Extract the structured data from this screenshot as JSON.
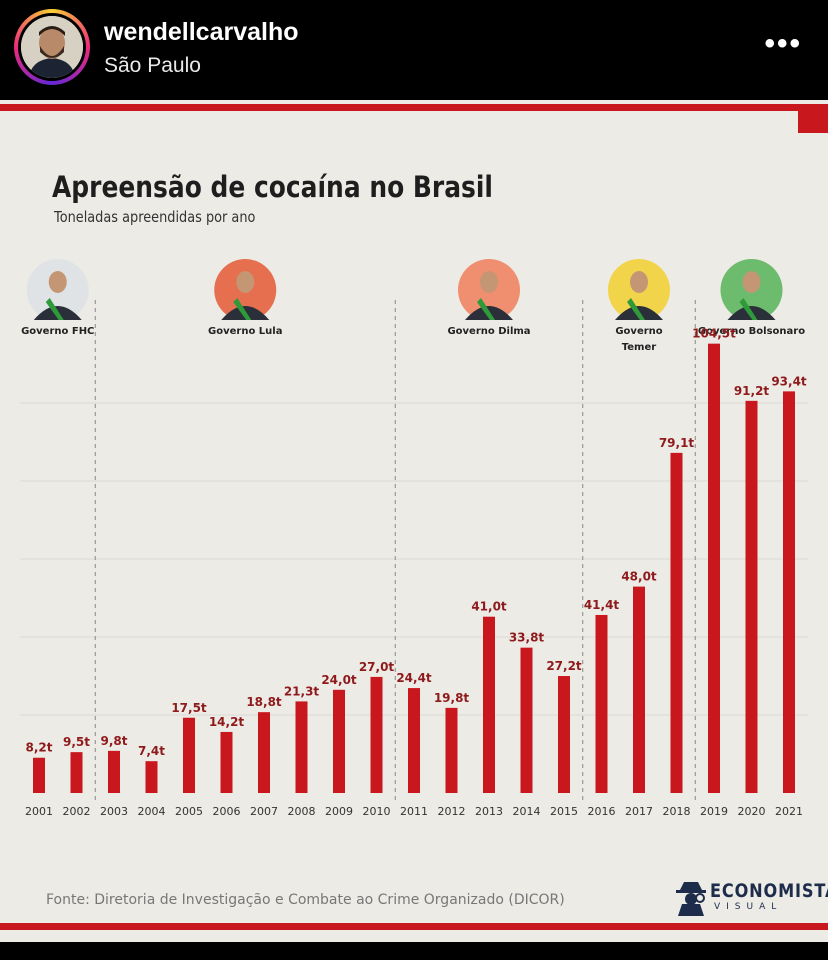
{
  "post": {
    "username": "wendellcarvalho",
    "location": "São Paulo",
    "more_icon": "more-dots-icon"
  },
  "colors": {
    "bar": "#c8181e",
    "value_label": "#8f1a1c",
    "background": "#ecebe6",
    "accent": "#c8181e"
  },
  "chart_data": {
    "type": "bar",
    "title": "Apreensão de cocaína no Brasil",
    "subtitle": "Toneladas apreendidas por ano",
    "categories": [
      "2001",
      "2002",
      "2003",
      "2004",
      "2005",
      "2006",
      "2007",
      "2008",
      "2009",
      "2010",
      "2011",
      "2012",
      "2013",
      "2014",
      "2015",
      "2016",
      "2017",
      "2018",
      "2019",
      "2020",
      "2021"
    ],
    "values": [
      8.2,
      9.5,
      9.8,
      7.4,
      17.5,
      14.2,
      18.8,
      21.3,
      24.0,
      27.0,
      24.4,
      19.8,
      41.0,
      33.8,
      27.2,
      41.4,
      48.0,
      79.1,
      104.5,
      91.2,
      93.4
    ],
    "value_labels": [
      "8,2t",
      "9,5t",
      "9,8t",
      "7,4t",
      "17,5t",
      "14,2t",
      "18,8t",
      "21,3t",
      "24,0t",
      "27,0t",
      "24,4t",
      "19,8t",
      "41,0t",
      "33,8t",
      "27,2t",
      "41,4t",
      "48,0t",
      "79,1t",
      "104,5t",
      "91,2t",
      "93,4t"
    ],
    "ylim": [
      0,
      110
    ],
    "grid": true,
    "governments": [
      {
        "label": [
          "Governo FHC"
        ],
        "start_index": 0,
        "end_index": 1,
        "portrait_color": "#dfe3e6"
      },
      {
        "label": [
          "Governo Lula"
        ],
        "start_index": 2,
        "end_index": 9,
        "portrait_color": "#e56f4f"
      },
      {
        "label": [
          "Governo Dilma"
        ],
        "start_index": 10,
        "end_index": 14,
        "portrait_color": "#f08e70"
      },
      {
        "label": [
          "Governo",
          "Temer"
        ],
        "start_index": 15,
        "end_index": 17,
        "portrait_color": "#f2d44a"
      },
      {
        "label": [
          "Governo Bolsonaro"
        ],
        "start_index": 18,
        "end_index": 20,
        "portrait_color": "#6dbb6d"
      }
    ],
    "source": "Fonte: Diretoria de Investigação e Combate ao Crime Organizado (DICOR)",
    "logo": {
      "main": "ECONOMISTA",
      "sub": "VISUAL"
    }
  }
}
